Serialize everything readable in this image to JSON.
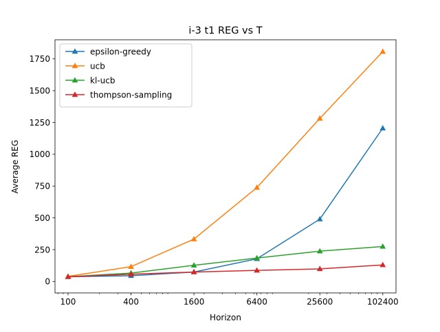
{
  "chart_data": {
    "type": "line",
    "title": "i-3 t1 REG vs T",
    "xlabel": "Horizon",
    "ylabel": "Average REG",
    "x_scale": "log",
    "x": [
      100,
      400,
      1600,
      6400,
      25600,
      102400
    ],
    "x_tick_labels": [
      "100",
      "400",
      "1600",
      "6400",
      "25600",
      "102400"
    ],
    "xlim": [
      75,
      137000
    ],
    "ylim": [
      -90,
      1900
    ],
    "y_ticks": [
      0,
      250,
      500,
      750,
      1000,
      1250,
      1500,
      1750
    ],
    "grid": false,
    "legend_position": "top-left",
    "marker": "triangle",
    "series": [
      {
        "name": "epsilon-greedy",
        "color": "#1f77b4",
        "values": [
          37,
          45,
          74,
          178,
          490,
          1205
        ]
      },
      {
        "name": "ucb",
        "color": "#ff7f0e",
        "values": [
          40,
          116,
          333,
          738,
          1282,
          1807
        ]
      },
      {
        "name": "kl-ucb",
        "color": "#2ca02c",
        "values": [
          37,
          66,
          127,
          184,
          238,
          275
        ]
      },
      {
        "name": "thompson-sampling",
        "color": "#d62728",
        "values": [
          37,
          57,
          74,
          87,
          99,
          130
        ]
      }
    ]
  }
}
